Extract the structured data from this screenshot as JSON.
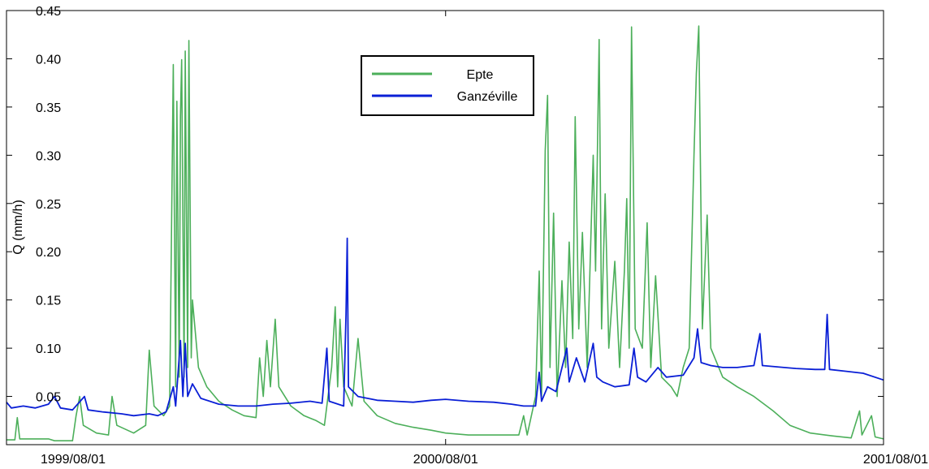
{
  "chart_data": {
    "type": "line",
    "title": "",
    "xlabel": "",
    "ylabel": "Q (mm/h)",
    "xlim": [
      "1999/08/01",
      "2001/08/01"
    ],
    "ylim": [
      0,
      0.45
    ],
    "x_ticks": [
      "1999/08/01",
      "2000/08/01",
      "2001/08/01"
    ],
    "y_ticks": [
      "0.05",
      "0.10",
      "0.15",
      "0.20",
      "0.25",
      "0.30",
      "0.35",
      "0.40",
      "0.45"
    ],
    "grid": false,
    "legend_position": "top-center",
    "series": [
      {
        "name": "Epte",
        "color": "#4caf5a",
        "points": [
          [
            "1999/08/01",
            0.005
          ],
          [
            "1999/08/08",
            0.005
          ],
          [
            "1999/08/10",
            0.028
          ],
          [
            "1999/08/12",
            0.006
          ],
          [
            "1999/08/20",
            0.006
          ],
          [
            "1999/09/05",
            0.006
          ],
          [
            "1999/09/10",
            0.004
          ],
          [
            "1999/09/25",
            0.004
          ],
          [
            "1999/09/28",
            0.03
          ],
          [
            "1999/10/01",
            0.05
          ],
          [
            "1999/10/04",
            0.02
          ],
          [
            "1999/10/15",
            0.012
          ],
          [
            "1999/10/25",
            0.01
          ],
          [
            "1999/10/28",
            0.05
          ],
          [
            "1999/11/01",
            0.02
          ],
          [
            "1999/11/15",
            0.012
          ],
          [
            "1999/11/25",
            0.02
          ],
          [
            "1999/11/28",
            0.098
          ],
          [
            "1999/12/02",
            0.04
          ],
          [
            "1999/12/10",
            0.03
          ],
          [
            "1999/12/15",
            0.04
          ],
          [
            "1999/12/18",
            0.394
          ],
          [
            "1999/12/20",
            0.06
          ],
          [
            "1999/12/21",
            0.356
          ],
          [
            "1999/12/23",
            0.07
          ],
          [
            "1999/12/24",
            0.34
          ],
          [
            "1999/12/25",
            0.399
          ],
          [
            "1999/12/27",
            0.07
          ],
          [
            "1999/12/28",
            0.408
          ],
          [
            "1999/12/30",
            0.08
          ],
          [
            "1999/12/31",
            0.419
          ],
          [
            "2000/01/02",
            0.09
          ],
          [
            "2000/01/03",
            0.15
          ],
          [
            "2000/01/08",
            0.08
          ],
          [
            "2000/01/15",
            0.06
          ],
          [
            "2000/01/25",
            0.045
          ],
          [
            "2000/02/05",
            0.036
          ],
          [
            "2000/02/15",
            0.03
          ],
          [
            "2000/02/25",
            0.028
          ],
          [
            "2000/02/28",
            0.09
          ],
          [
            "2000/03/02",
            0.05
          ],
          [
            "2000/03/05",
            0.108
          ],
          [
            "2000/03/08",
            0.06
          ],
          [
            "2000/03/12",
            0.13
          ],
          [
            "2000/03/15",
            0.06
          ],
          [
            "2000/03/25",
            0.04
          ],
          [
            "2000/04/05",
            0.03
          ],
          [
            "2000/04/15",
            0.025
          ],
          [
            "2000/04/22",
            0.02
          ],
          [
            "2000/04/28",
            0.08
          ],
          [
            "2000/05/01",
            0.143
          ],
          [
            "2000/05/03",
            0.06
          ],
          [
            "2000/05/05",
            0.13
          ],
          [
            "2000/05/08",
            0.06
          ],
          [
            "2000/05/15",
            0.04
          ],
          [
            "2000/05/20",
            0.11
          ],
          [
            "2000/05/25",
            0.045
          ],
          [
            "2000/06/05",
            0.03
          ],
          [
            "2000/06/20",
            0.022
          ],
          [
            "2000/07/05",
            0.018
          ],
          [
            "2000/07/20",
            0.015
          ],
          [
            "2000/08/01",
            0.012
          ],
          [
            "2000/08/20",
            0.01
          ],
          [
            "2000/09/10",
            0.01
          ],
          [
            "2000/10/01",
            0.01
          ],
          [
            "2000/10/05",
            0.03
          ],
          [
            "2000/10/08",
            0.01
          ],
          [
            "2000/10/15",
            0.05
          ],
          [
            "2000/10/18",
            0.18
          ],
          [
            "2000/10/20",
            0.05
          ],
          [
            "2000/10/23",
            0.305
          ],
          [
            "2000/10/25",
            0.362
          ],
          [
            "2000/10/27",
            0.08
          ],
          [
            "2000/10/30",
            0.24
          ],
          [
            "2000/11/02",
            0.05
          ],
          [
            "2000/11/06",
            0.17
          ],
          [
            "2000/11/09",
            0.08
          ],
          [
            "2000/11/12",
            0.21
          ],
          [
            "2000/11/15",
            0.11
          ],
          [
            "2000/11/17",
            0.34
          ],
          [
            "2000/11/20",
            0.12
          ],
          [
            "2000/11/23",
            0.22
          ],
          [
            "2000/11/27",
            0.08
          ],
          [
            "2000/12/02",
            0.3
          ],
          [
            "2000/12/04",
            0.18
          ],
          [
            "2000/12/07",
            0.42
          ],
          [
            "2000/12/09",
            0.12
          ],
          [
            "2000/12/12",
            0.26
          ],
          [
            "2000/12/15",
            0.1
          ],
          [
            "2000/12/20",
            0.19
          ],
          [
            "2000/12/24",
            0.08
          ],
          [
            "2000/12/28",
            0.18
          ],
          [
            "2000/12/30",
            0.255
          ],
          [
            "2001/01/01",
            0.1
          ],
          [
            "2001/01/03",
            0.433
          ],
          [
            "2001/01/06",
            0.12
          ],
          [
            "2001/01/12",
            0.1
          ],
          [
            "2001/01/16",
            0.23
          ],
          [
            "2001/01/19",
            0.08
          ],
          [
            "2001/01/23",
            0.175
          ],
          [
            "2001/01/28",
            0.07
          ],
          [
            "2001/02/05",
            0.06
          ],
          [
            "2001/02/10",
            0.05
          ],
          [
            "2001/02/15",
            0.08
          ],
          [
            "2001/02/20",
            0.1
          ],
          [
            "2001/02/24",
            0.3
          ],
          [
            "2001/02/26",
            0.385
          ],
          [
            "2001/02/28",
            0.434
          ],
          [
            "2001/03/03",
            0.12
          ],
          [
            "2001/03/07",
            0.238
          ],
          [
            "2001/03/10",
            0.1
          ],
          [
            "2001/03/20",
            0.07
          ],
          [
            "2001/04/01",
            0.06
          ],
          [
            "2001/04/15",
            0.05
          ],
          [
            "2001/05/01",
            0.035
          ],
          [
            "2001/05/15",
            0.02
          ],
          [
            "2001/06/01",
            0.012
          ],
          [
            "2001/06/20",
            0.009
          ],
          [
            "2001/07/05",
            0.007
          ],
          [
            "2001/07/12",
            0.035
          ],
          [
            "2001/07/14",
            0.01
          ],
          [
            "2001/07/22",
            0.03
          ],
          [
            "2001/07/25",
            0.008
          ],
          [
            "2001/08/01",
            0.006
          ]
        ]
      },
      {
        "name": "Ganzéville",
        "color": "#0a1fd6",
        "points": [
          [
            "1999/08/01",
            0.044
          ],
          [
            "1999/08/05",
            0.038
          ],
          [
            "1999/08/15",
            0.04
          ],
          [
            "1999/08/25",
            0.038
          ],
          [
            "1999/09/05",
            0.042
          ],
          [
            "1999/09/10",
            0.05
          ],
          [
            "1999/09/15",
            0.038
          ],
          [
            "1999/09/25",
            0.036
          ],
          [
            "1999/10/05",
            0.05
          ],
          [
            "1999/10/08",
            0.036
          ],
          [
            "1999/10/20",
            0.034
          ],
          [
            "1999/11/05",
            0.032
          ],
          [
            "1999/11/15",
            0.03
          ],
          [
            "1999/11/28",
            0.032
          ],
          [
            "1999/12/05",
            0.03
          ],
          [
            "1999/12/12",
            0.034
          ],
          [
            "1999/12/18",
            0.06
          ],
          [
            "1999/12/20",
            0.04
          ],
          [
            "1999/12/24",
            0.108
          ],
          [
            "1999/12/26",
            0.05
          ],
          [
            "1999/12/28",
            0.105
          ],
          [
            "1999/12/30",
            0.05
          ],
          [
            "2000/01/03",
            0.063
          ],
          [
            "2000/01/10",
            0.048
          ],
          [
            "2000/01/25",
            0.042
          ],
          [
            "2000/02/10",
            0.04
          ],
          [
            "2000/02/25",
            0.04
          ],
          [
            "2000/03/10",
            0.042
          ],
          [
            "2000/03/25",
            0.043
          ],
          [
            "2000/04/10",
            0.045
          ],
          [
            "2000/04/20",
            0.043
          ],
          [
            "2000/04/24",
            0.1
          ],
          [
            "2000/04/26",
            0.045
          ],
          [
            "2000/05/08",
            0.04
          ],
          [
            "2000/05/10",
            0.135
          ],
          [
            "2000/05/11",
            0.214
          ],
          [
            "2000/05/12",
            0.06
          ],
          [
            "2000/05/20",
            0.05
          ],
          [
            "2000/06/05",
            0.046
          ],
          [
            "2000/06/20",
            0.045
          ],
          [
            "2000/07/05",
            0.044
          ],
          [
            "2000/07/20",
            0.046
          ],
          [
            "2000/08/01",
            0.047
          ],
          [
            "2000/08/20",
            0.045
          ],
          [
            "2000/09/10",
            0.044
          ],
          [
            "2000/09/25",
            0.042
          ],
          [
            "2000/10/05",
            0.04
          ],
          [
            "2000/10/15",
            0.04
          ],
          [
            "2000/10/18",
            0.075
          ],
          [
            "2000/10/20",
            0.045
          ],
          [
            "2000/10/25",
            0.06
          ],
          [
            "2000/11/01",
            0.055
          ],
          [
            "2000/11/10",
            0.1
          ],
          [
            "2000/11/12",
            0.065
          ],
          [
            "2000/11/18",
            0.09
          ],
          [
            "2000/11/25",
            0.065
          ],
          [
            "2000/12/02",
            0.105
          ],
          [
            "2000/12/05",
            0.07
          ],
          [
            "2000/12/10",
            0.065
          ],
          [
            "2000/12/20",
            0.06
          ],
          [
            "2001/01/01",
            0.062
          ],
          [
            "2001/01/05",
            0.1
          ],
          [
            "2001/01/08",
            0.07
          ],
          [
            "2001/01/15",
            0.065
          ],
          [
            "2001/01/25",
            0.08
          ],
          [
            "2001/02/01",
            0.07
          ],
          [
            "2001/02/15",
            0.072
          ],
          [
            "2001/02/24",
            0.09
          ],
          [
            "2001/02/27",
            0.12
          ],
          [
            "2001/03/02",
            0.085
          ],
          [
            "2001/03/10",
            0.082
          ],
          [
            "2001/03/20",
            0.08
          ],
          [
            "2001/04/01",
            0.08
          ],
          [
            "2001/04/15",
            0.082
          ],
          [
            "2001/04/20",
            0.115
          ],
          [
            "2001/04/22",
            0.082
          ],
          [
            "2001/05/10",
            0.08
          ],
          [
            "2001/05/20",
            0.079
          ],
          [
            "2001/06/05",
            0.078
          ],
          [
            "2001/06/13",
            0.078
          ],
          [
            "2001/06/15",
            0.135
          ],
          [
            "2001/06/17",
            0.078
          ],
          [
            "2001/07/01",
            0.076
          ],
          [
            "2001/07/15",
            0.074
          ],
          [
            "2001/08/01",
            0.067
          ]
        ]
      }
    ]
  }
}
